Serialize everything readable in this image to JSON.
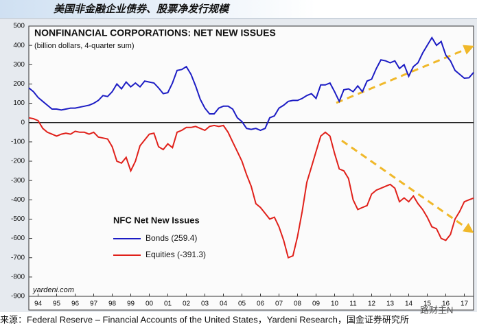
{
  "header": {
    "title": "美国非金融企业债券、股票净发行规模"
  },
  "source": "来源：Federal Reserve – Financial Accounts of the United States，Yardeni Research，国金证券研究所",
  "watermark": "路财主N",
  "chart_data": {
    "type": "line",
    "title": "NONFINANCIAL CORPORATIONS: NET NEW ISSUES",
    "subtitle": "(billion dollars, 4-quarter sum)",
    "legend_title": "NFC Net New Issues",
    "credit": "yardeni.com",
    "x": [
      1994,
      1994.25,
      1994.5,
      1994.75,
      1995,
      1995.25,
      1995.5,
      1995.75,
      1996,
      1996.25,
      1996.5,
      1996.75,
      1997,
      1997.25,
      1997.5,
      1997.75,
      1998,
      1998.25,
      1998.5,
      1998.75,
      1999,
      1999.25,
      1999.5,
      1999.75,
      2000,
      2000.25,
      2000.5,
      2000.75,
      2001,
      2001.25,
      2001.5,
      2001.75,
      2002,
      2002.25,
      2002.5,
      2002.75,
      2003,
      2003.25,
      2003.5,
      2003.75,
      2004,
      2004.25,
      2004.5,
      2004.75,
      2005,
      2005.25,
      2005.5,
      2005.75,
      2006,
      2006.25,
      2006.5,
      2006.75,
      2007,
      2007.25,
      2007.5,
      2007.75,
      2008,
      2008.25,
      2008.5,
      2008.75,
      2009,
      2009.25,
      2009.5,
      2009.75,
      2010,
      2010.25,
      2010.5,
      2010.75,
      2011,
      2011.25,
      2011.5,
      2011.75,
      2012,
      2012.25,
      2012.5,
      2012.75,
      2013,
      2013.25,
      2013.5,
      2013.75,
      2014,
      2014.25,
      2014.5,
      2014.75,
      2015,
      2015.25,
      2015.5,
      2015.75,
      2016,
      2016.25,
      2016.5,
      2016.75,
      2017,
      2017.25,
      2017.5,
      2017.75,
      2018
    ],
    "series": [
      {
        "name": "Bonds (259.4)",
        "color": "#1c1cc4",
        "values": [
          180,
          160,
          130,
          110,
          90,
          70,
          70,
          65,
          70,
          75,
          75,
          80,
          85,
          90,
          100,
          115,
          140,
          135,
          160,
          200,
          175,
          210,
          185,
          205,
          185,
          215,
          210,
          205,
          180,
          150,
          155,
          205,
          270,
          275,
          290,
          250,
          190,
          120,
          75,
          45,
          45,
          75,
          85,
          85,
          70,
          25,
          5,
          -30,
          -35,
          -30,
          -40,
          -30,
          25,
          35,
          75,
          90,
          110,
          115,
          115,
          125,
          140,
          150,
          125,
          195,
          195,
          205,
          160,
          110,
          170,
          175,
          160,
          190,
          160,
          215,
          225,
          280,
          325,
          320,
          310,
          320,
          280,
          300,
          240,
          290,
          310,
          360,
          400,
          440,
          400,
          420,
          350,
          320,
          270,
          250,
          230,
          232,
          259.4
        ]
      },
      {
        "name": "Equities (-391.3)",
        "color": "#e0201a",
        "values": [
          25,
          20,
          10,
          -30,
          -50,
          -60,
          -70,
          -60,
          -55,
          -60,
          -45,
          -50,
          -50,
          -60,
          -50,
          -75,
          -80,
          -85,
          -125,
          -200,
          -210,
          -180,
          -250,
          -200,
          -120,
          -90,
          -60,
          -55,
          -125,
          -140,
          -110,
          -130,
          -50,
          -40,
          -25,
          -25,
          -20,
          -30,
          -40,
          -20,
          -15,
          -20,
          -15,
          -50,
          -100,
          -150,
          -200,
          -270,
          -330,
          -420,
          -440,
          -470,
          -500,
          -490,
          -540,
          -610,
          -700,
          -690,
          -590,
          -460,
          -310,
          -230,
          -150,
          -70,
          -50,
          -70,
          -160,
          -240,
          -250,
          -290,
          -400,
          -450,
          -440,
          -430,
          -370,
          -350,
          -340,
          -330,
          -320,
          -340,
          -410,
          -390,
          -410,
          -380,
          -420,
          -450,
          -490,
          -540,
          -550,
          -600,
          -610,
          -580,
          -500,
          -460,
          -410,
          -400,
          -391.3
        ]
      }
    ],
    "xlim": [
      1994,
      2018
    ],
    "xticks": [
      {
        "value": 1994.5,
        "label": "94"
      },
      {
        "value": 1995.5,
        "label": "95"
      },
      {
        "value": 1996.5,
        "label": "96"
      },
      {
        "value": 1997.5,
        "label": "97"
      },
      {
        "value": 1998.5,
        "label": "98"
      },
      {
        "value": 1999.5,
        "label": "99"
      },
      {
        "value": 2000.5,
        "label": "00"
      },
      {
        "value": 2001.5,
        "label": "01"
      },
      {
        "value": 2002.5,
        "label": "02"
      },
      {
        "value": 2003.5,
        "label": "03"
      },
      {
        "value": 2004.5,
        "label": "04"
      },
      {
        "value": 2005.5,
        "label": "05"
      },
      {
        "value": 2006.5,
        "label": "06"
      },
      {
        "value": 2007.5,
        "label": "07"
      },
      {
        "value": 2008.5,
        "label": "08"
      },
      {
        "value": 2009.5,
        "label": "09"
      },
      {
        "value": 2010.5,
        "label": "10"
      },
      {
        "value": 2011.5,
        "label": "11"
      },
      {
        "value": 2012.5,
        "label": "12"
      },
      {
        "value": 2013.5,
        "label": "13"
      },
      {
        "value": 2014.5,
        "label": "14"
      },
      {
        "value": 2015.5,
        "label": "15"
      },
      {
        "value": 2016.5,
        "label": "16"
      },
      {
        "value": 2017.5,
        "label": "17"
      }
    ],
    "ylim": [
      -900,
      500
    ],
    "yticks": [
      -900,
      -800,
      -700,
      -600,
      -500,
      -400,
      -300,
      -200,
      -100,
      0,
      100,
      200,
      300,
      400,
      500
    ]
  }
}
